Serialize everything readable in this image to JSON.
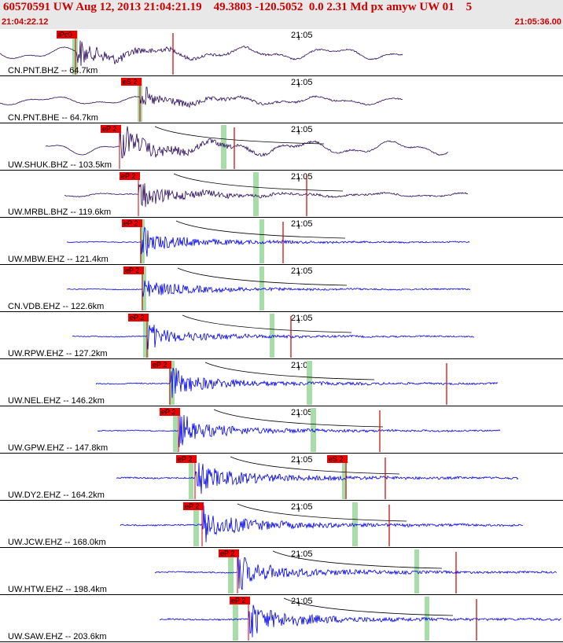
{
  "header": {
    "title": "60570591 UW Aug 12, 2013 21:04:21.19    49.3803 -120.5052  0.0 2.31 Md px amyw UW 01    5",
    "start_time": "21:04:22.12",
    "end_time": "21:05:36.00"
  },
  "colors": {
    "header_text": "#cc0000",
    "header_bg": "#e8e8e8",
    "trace_broadband": "#2a0a5e",
    "trace_short_period": "#0000ee",
    "pick_fill": "#ee0000",
    "pick_line": "#cc0000",
    "window_band": "#a8dca8"
  },
  "chart_data": {
    "type": "line",
    "tick_label": "21:05",
    "traces": [
      {
        "label": "CN.PNT.BHZ -- 64.7km",
        "channel": "BHZ",
        "distance_km": 64.7,
        "pick": "iPc0",
        "second_pick": ""
      },
      {
        "label": "CN.PNT.BHE -- 64.7km",
        "channel": "BHE",
        "distance_km": 64.7,
        "pick": "eS 2",
        "second_pick": ""
      },
      {
        "label": "UW.SHUK.BHZ -- 103.5km",
        "channel": "BHZ",
        "distance_km": 103.5,
        "pick": "eP 2",
        "second_pick": ""
      },
      {
        "label": "UW.MRBL.BHZ -- 119.6km",
        "channel": "BHZ",
        "distance_km": 119.6,
        "pick": "eP 2",
        "second_pick": ""
      },
      {
        "label": "UW.MBW.EHZ -- 121.4km",
        "channel": "EHZ",
        "distance_km": 121.4,
        "pick": "eP 2",
        "second_pick": ""
      },
      {
        "label": "CN.VDB.EHZ -- 122.6km",
        "channel": "EHZ",
        "distance_km": 122.6,
        "pick": "eP 2",
        "second_pick": ""
      },
      {
        "label": "UW.RPW.EHZ -- 127.2km",
        "channel": "EHZ",
        "distance_km": 127.2,
        "pick": "eP 2",
        "second_pick": ""
      },
      {
        "label": "UW.NEL.EHZ -- 146.2km",
        "channel": "EHZ",
        "distance_km": 146.2,
        "pick": "eP 2",
        "second_pick": ""
      },
      {
        "label": "UW.GPW.EHZ -- 147.8km",
        "channel": "EHZ",
        "distance_km": 147.8,
        "pick": "eP 2",
        "second_pick": ""
      },
      {
        "label": "UW.DY2.EHZ -- 164.2km",
        "channel": "EHZ",
        "distance_km": 164.2,
        "pick": "eP 2",
        "second_pick": "eS 2"
      },
      {
        "label": "UW.JCW.EHZ -- 168.0km",
        "channel": "EHZ",
        "distance_km": 168.0,
        "pick": "eP 2",
        "second_pick": ""
      },
      {
        "label": "UW.HTW.EHZ -- 198.4km",
        "channel": "EHZ",
        "distance_km": 198.4,
        "pick": "eP 2",
        "second_pick": ""
      },
      {
        "label": "UW.SAW.EHZ -- 203.6km",
        "channel": "EHZ",
        "distance_km": 203.6,
        "pick": "eP 2",
        "second_pick": ""
      }
    ]
  }
}
